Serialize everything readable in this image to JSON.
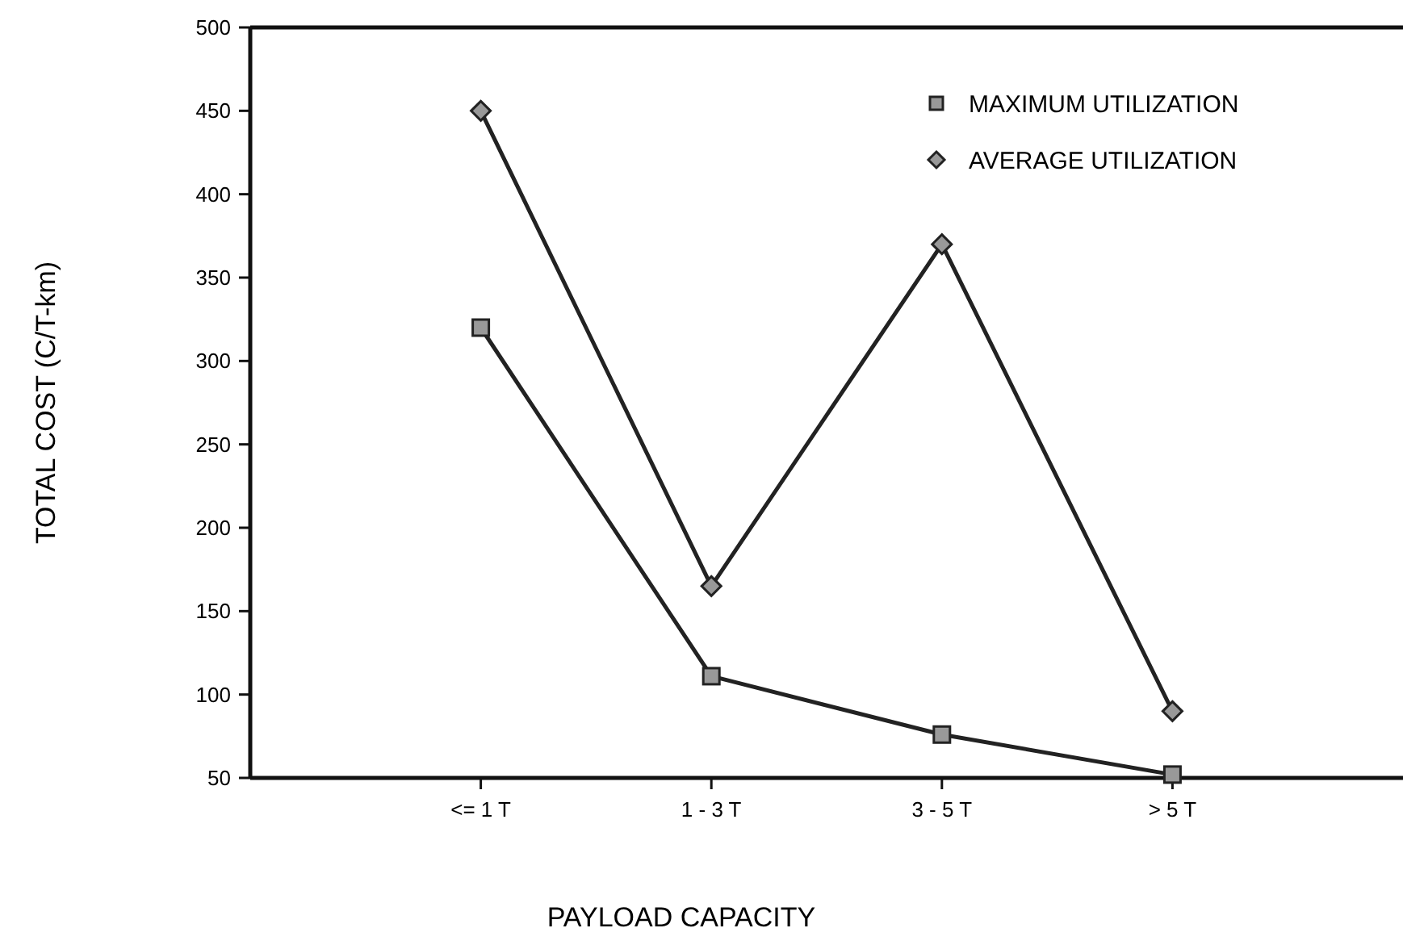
{
  "chart_data": {
    "type": "line",
    "xlabel": "PAYLOAD CAPACITY",
    "ylabel": "TOTAL COST (C/T-km)",
    "categories": [
      "<= 1 T",
      "1 - 3 T",
      "3 - 5 T",
      "> 5 T"
    ],
    "series": [
      {
        "name": "MAXIMUM UTILIZATION",
        "color": "#222222",
        "marker": "square",
        "values": [
          320,
          111,
          76,
          52
        ]
      },
      {
        "name": "AVERAGE UTILIZATION",
        "color": "#222222",
        "marker": "diamond",
        "values": [
          450,
          165,
          370,
          90
        ]
      }
    ],
    "ylim": [
      50,
      500
    ],
    "yticks": [
      50,
      100,
      150,
      200,
      250,
      300,
      350,
      400,
      450,
      500
    ],
    "grid": false,
    "legend": "top right",
    "line_style": "solid"
  }
}
